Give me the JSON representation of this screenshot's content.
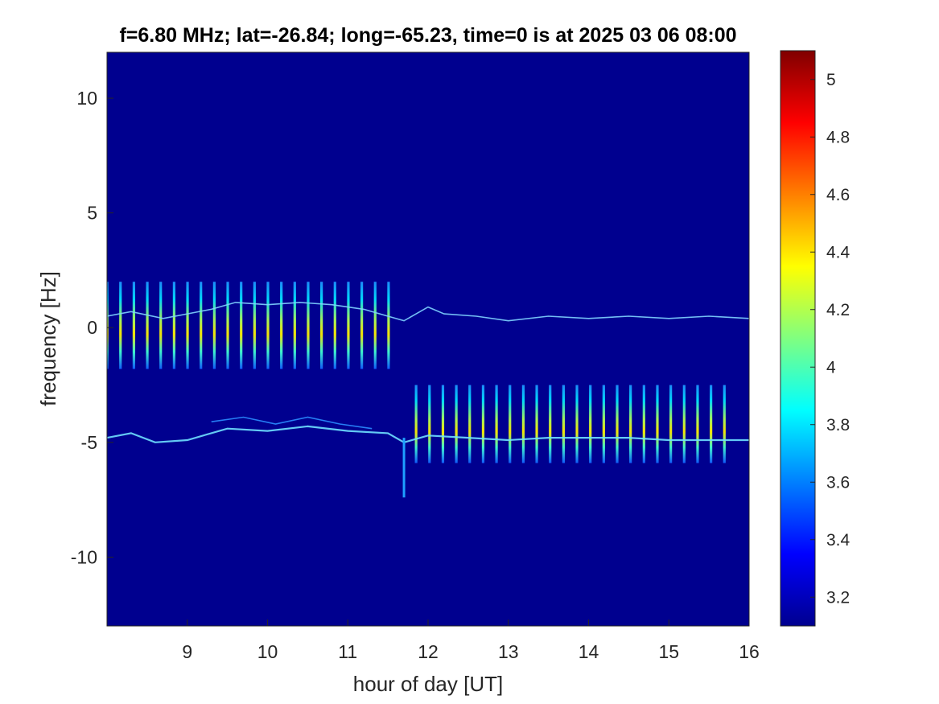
{
  "chart_data": {
    "type": "heatmap",
    "title": "f=6.80 MHz;  lat=-26.84; long=-65.23, time=0 is at 2025 03 06 08:00",
    "xlabel": "hour of day [UT]",
    "ylabel": "frequency [Hz]",
    "xlim": [
      8.0,
      16.0
    ],
    "ylim": [
      -13.0,
      12.0
    ],
    "x_ticks": [
      9,
      10,
      11,
      12,
      13,
      14,
      15,
      16
    ],
    "y_ticks": [
      -10,
      -5,
      0,
      5,
      10
    ],
    "x_tick_labels": [
      "9",
      "10",
      "11",
      "12",
      "13",
      "14",
      "15",
      "16"
    ],
    "y_tick_labels": [
      "-10",
      "-5",
      "0",
      "5",
      "10"
    ],
    "colorbar": {
      "range": [
        3.1,
        5.1
      ],
      "ticks": [
        3.2,
        3.4,
        3.6,
        3.8,
        4,
        4.2,
        4.4,
        4.6,
        4.8,
        5
      ],
      "tick_labels": [
        "3.2",
        "3.4",
        "3.6",
        "3.8",
        "4",
        "4.2",
        "4.4",
        "4.6",
        "4.8",
        "5"
      ],
      "colormap": "jet"
    },
    "background_value": 3.1,
    "features": {
      "stripes_upper": {
        "x_start": 8.0,
        "x_end": 11.6,
        "spacing_hours": 0.167,
        "f_top": 2.0,
        "f_bottom": -1.8
      },
      "stripes_lower": {
        "x_start": 11.85,
        "x_end": 15.85,
        "spacing_hours": 0.167,
        "f_top": -2.5,
        "f_bottom": -5.9
      },
      "upper_trace": [
        [
          8.0,
          0.5
        ],
        [
          8.3,
          0.7
        ],
        [
          8.7,
          0.4
        ],
        [
          9.0,
          0.6
        ],
        [
          9.3,
          0.8
        ],
        [
          9.6,
          1.1
        ],
        [
          10.0,
          1.0
        ],
        [
          10.4,
          1.1
        ],
        [
          10.8,
          1.0
        ],
        [
          11.2,
          0.8
        ],
        [
          11.5,
          0.5
        ],
        [
          11.7,
          0.3
        ],
        [
          12.0,
          0.9
        ],
        [
          12.2,
          0.6
        ],
        [
          12.6,
          0.5
        ],
        [
          13.0,
          0.3
        ],
        [
          13.5,
          0.5
        ],
        [
          14.0,
          0.4
        ],
        [
          14.5,
          0.5
        ],
        [
          15.0,
          0.4
        ],
        [
          15.5,
          0.5
        ],
        [
          16.0,
          0.4
        ]
      ],
      "lower_trace": [
        [
          8.0,
          -4.8
        ],
        [
          8.3,
          -4.6
        ],
        [
          8.6,
          -5.0
        ],
        [
          9.0,
          -4.9
        ],
        [
          9.5,
          -4.4
        ],
        [
          10.0,
          -4.5
        ],
        [
          10.5,
          -4.3
        ],
        [
          11.0,
          -4.5
        ],
        [
          11.5,
          -4.6
        ],
        [
          11.7,
          -5.0
        ],
        [
          12.0,
          -4.7
        ],
        [
          12.5,
          -4.8
        ],
        [
          13.0,
          -4.9
        ],
        [
          13.5,
          -4.8
        ],
        [
          14.0,
          -4.8
        ],
        [
          14.5,
          -4.8
        ],
        [
          15.0,
          -4.9
        ],
        [
          15.5,
          -4.9
        ],
        [
          16.0,
          -4.9
        ]
      ],
      "lower_side_trace": [
        [
          9.3,
          -4.1
        ],
        [
          9.7,
          -3.9
        ],
        [
          10.1,
          -4.2
        ],
        [
          10.5,
          -3.9
        ],
        [
          10.9,
          -4.2
        ],
        [
          11.3,
          -4.4
        ]
      ],
      "spike": {
        "x": 11.7,
        "f_top": -4.8,
        "f_bottom": -7.4
      }
    }
  }
}
